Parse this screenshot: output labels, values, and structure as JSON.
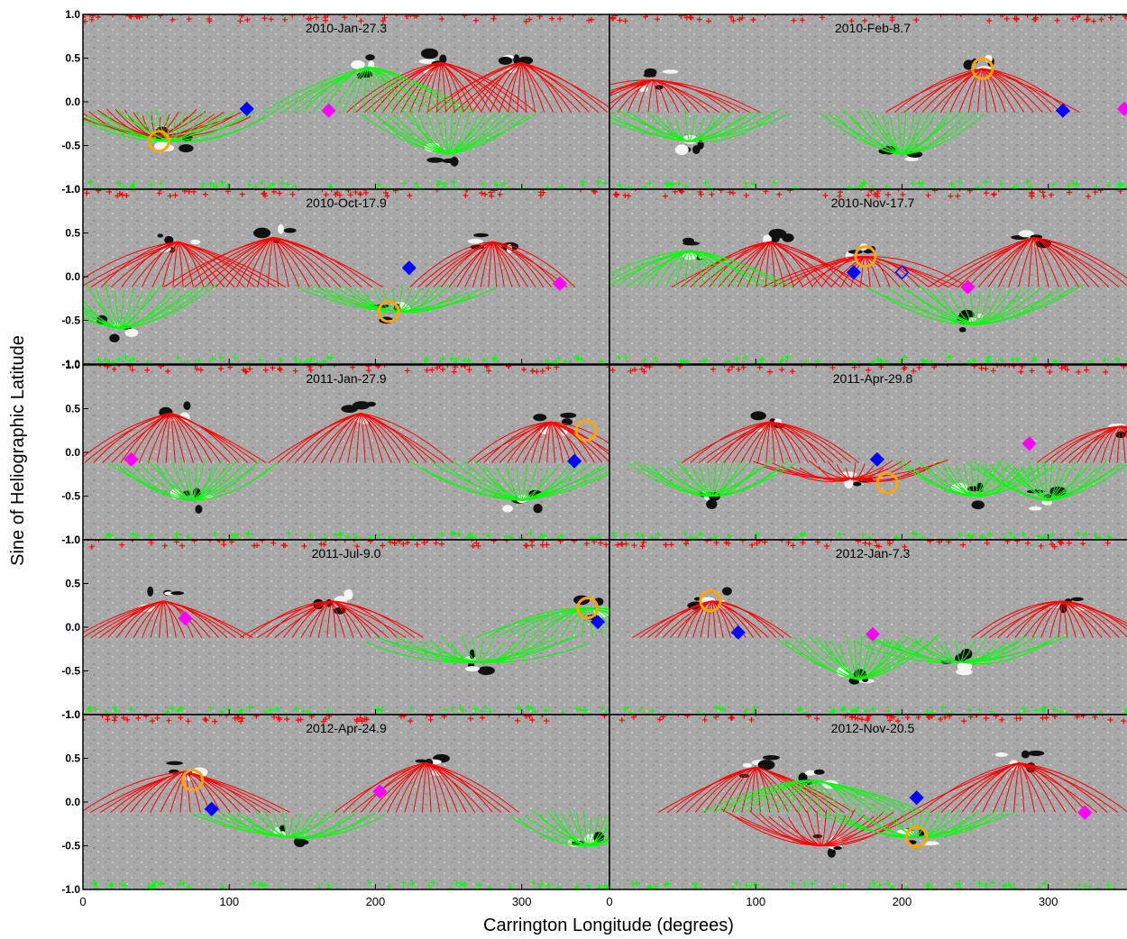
{
  "chart_data": {
    "type": "scatter",
    "xlabel": "Carrington Longitude (degrees)",
    "ylabel": "Sine of Heliographic Latitude",
    "xlim": [
      0,
      360
    ],
    "ylim": [
      -1.0,
      1.0
    ],
    "x_ticks": [
      0,
      100,
      200,
      300
    ],
    "x_tick_labels": [
      "0",
      "100",
      "200",
      "300"
    ],
    "y_ticks": [
      -1.0,
      -0.5,
      0.0,
      0.5,
      1.0
    ],
    "y_tick_labels": [
      "-1.0",
      "-0.5",
      "0.0",
      "0.5",
      "1.0"
    ],
    "grid": false,
    "layout": "5 rows x 2 columns of synoptic magnetogram panels with field-line overlays",
    "colors": {
      "positive_field_lines": "#ff0000",
      "negative_field_lines": "#00ff00",
      "open_circle_marker": "#ffa500",
      "blue_diamond": "#0000ff",
      "magenta_diamond": "#ff00ff",
      "background_magnetogram": "#a8a8a8"
    },
    "panels": [
      {
        "date": "2010-Jan-27.3",
        "circle": {
          "x": 52,
          "y": -0.45
        },
        "blue_diamond": {
          "x": 112,
          "y": -0.08,
          "filled": true
        },
        "magenta_diamond": {
          "x": 168,
          "y": -0.1
        },
        "red_fan_centers": [
          [
            50,
            -0.4
          ],
          [
            245,
            0.45
          ],
          [
            300,
            0.45
          ]
        ],
        "green_fan_centers": [
          [
            60,
            -0.45
          ],
          [
            195,
            0.4
          ],
          [
            250,
            -0.6
          ]
        ]
      },
      {
        "date": "2010-Feb-8.7",
        "circle": {
          "x": 255,
          "y": 0.38
        },
        "blue_diamond": {
          "x": 310,
          "y": -0.1,
          "filled": true
        },
        "magenta_diamond": {
          "x": 352,
          "y": -0.08
        },
        "red_fan_centers": [
          [
            255,
            0.38
          ],
          [
            30,
            0.25
          ]
        ],
        "green_fan_centers": [
          [
            55,
            -0.45
          ],
          [
            200,
            -0.6
          ]
        ]
      },
      {
        "date": "2010-Oct-17.9",
        "circle": {
          "x": 209,
          "y": -0.4
        },
        "blue_diamond": {
          "x": 223,
          "y": 0.1,
          "filled": true
        },
        "magenta_diamond": {
          "x": 326,
          "y": -0.08
        },
        "red_fan_centers": [
          [
            65,
            0.4
          ],
          [
            130,
            0.45
          ],
          [
            280,
            0.4
          ]
        ],
        "green_fan_centers": [
          [
            215,
            -0.4
          ],
          [
            25,
            -0.6
          ]
        ]
      },
      {
        "date": "2010-Nov-17.7",
        "circle": {
          "x": 175,
          "y": 0.23
        },
        "blue_diamond": {
          "x": 167,
          "y": 0.05,
          "filled": true
        },
        "blue_diamond_open": {
          "x": 200,
          "y": 0.05
        },
        "magenta_diamond": {
          "x": 245,
          "y": -0.12
        },
        "red_fan_centers": [
          [
            110,
            0.4
          ],
          [
            175,
            0.23
          ],
          [
            290,
            0.45
          ]
        ],
        "green_fan_centers": [
          [
            55,
            0.3
          ],
          [
            250,
            -0.55
          ]
        ]
      },
      {
        "date": "2011-Jan-27.9",
        "circle": {
          "x": 344,
          "y": 0.25
        },
        "blue_diamond": {
          "x": 336,
          "y": -0.1,
          "filled": true
        },
        "magenta_diamond": {
          "x": 33,
          "y": -0.08
        },
        "red_fan_centers": [
          [
            60,
            0.45
          ],
          [
            190,
            0.45
          ],
          [
            320,
            0.35
          ]
        ],
        "green_fan_centers": [
          [
            75,
            -0.55
          ],
          [
            300,
            -0.55
          ]
        ]
      },
      {
        "date": "2011-Apr-29.8",
        "circle": {
          "x": 190,
          "y": -0.35
        },
        "blue_diamond": {
          "x": 183,
          "y": -0.08,
          "filled": true
        },
        "magenta_diamond": {
          "x": 287,
          "y": 0.1
        },
        "red_fan_centers": [
          [
            165,
            -0.3
          ],
          [
            110,
            0.35
          ],
          [
            350,
            0.3
          ]
        ],
        "green_fan_centers": [
          [
            70,
            -0.5
          ],
          [
            250,
            -0.5
          ],
          [
            300,
            -0.55
          ]
        ]
      },
      {
        "date": "2011-Jul-9.0",
        "circle": {
          "x": 345,
          "y": 0.22
        },
        "blue_diamond": {
          "x": 352,
          "y": 0.06,
          "filled": true
        },
        "magenta_diamond": {
          "x": 70,
          "y": 0.1
        },
        "red_fan_centers": [
          [
            55,
            0.3
          ],
          [
            170,
            0.3
          ]
        ],
        "green_fan_centers": [
          [
            270,
            -0.4
          ],
          [
            345,
            0.22
          ]
        ]
      },
      {
        "date": "2012-Jan-7.3",
        "circle": {
          "x": 69,
          "y": 0.3
        },
        "blue_diamond": {
          "x": 88,
          "y": -0.06,
          "filled": true
        },
        "magenta_diamond": {
          "x": 180,
          "y": -0.08
        },
        "red_fan_centers": [
          [
            70,
            0.3
          ],
          [
            310,
            0.3
          ]
        ],
        "green_fan_centers": [
          [
            170,
            -0.6
          ],
          [
            240,
            -0.4
          ]
        ]
      },
      {
        "date": "2012-Apr-24.9",
        "circle": {
          "x": 75,
          "y": 0.25
        },
        "blue_diamond": {
          "x": 88,
          "y": -0.08,
          "filled": true
        },
        "magenta_diamond": {
          "x": 203,
          "y": 0.12
        },
        "red_fan_centers": [
          [
            70,
            0.35
          ],
          [
            235,
            0.45
          ]
        ],
        "green_fan_centers": [
          [
            140,
            -0.4
          ],
          [
            345,
            -0.5
          ]
        ]
      },
      {
        "date": "2012-Nov-20.5",
        "circle": {
          "x": 210,
          "y": -0.4
        },
        "blue_diamond": {
          "x": 210,
          "y": 0.05,
          "filled": true
        },
        "magenta_diamond": {
          "x": 325,
          "y": -0.12
        },
        "red_fan_centers": [
          [
            100,
            0.4
          ],
          [
            280,
            0.45
          ],
          [
            145,
            -0.5
          ]
        ],
        "green_fan_centers": [
          [
            140,
            0.25
          ],
          [
            210,
            -0.4
          ]
        ]
      }
    ]
  }
}
